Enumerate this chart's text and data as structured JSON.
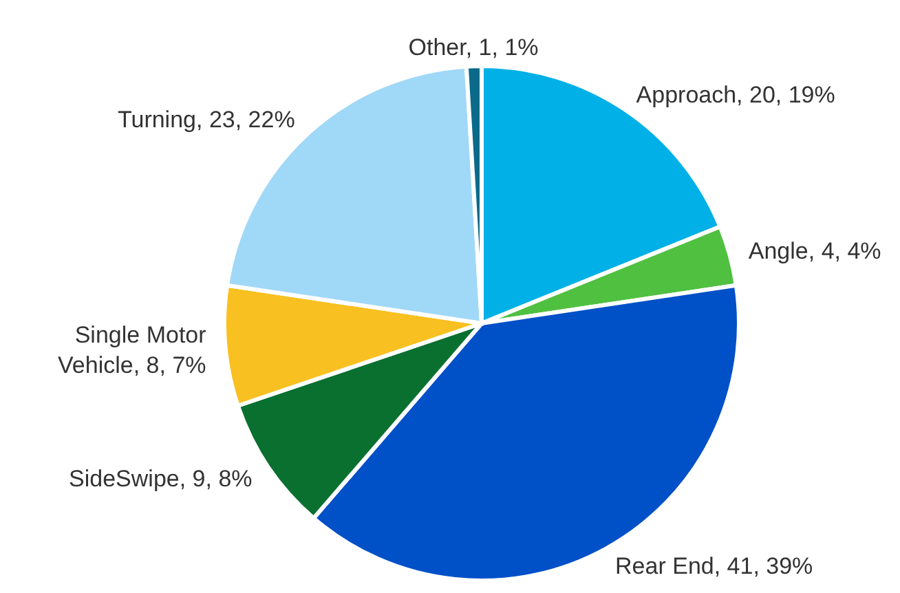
{
  "chart_data": {
    "type": "pie",
    "categories": [
      "Approach",
      "Angle",
      "Rear End",
      "SideSwipe",
      "Single Motor Vehicle",
      "Turning",
      "Other"
    ],
    "values": [
      20,
      4,
      41,
      9,
      8,
      23,
      1
    ],
    "value_labels": [
      "20, 19%",
      "4, 4%",
      "41, 39%",
      "9, 8%",
      "8, 7%",
      "23, 22%",
      "1, 1%"
    ],
    "colors": [
      "#00b0e6",
      "#50c040",
      "#0050c8",
      "#0a7030",
      "#f8c020",
      "#a0d8f8",
      "#0b6a8a"
    ],
    "legend": false
  }
}
